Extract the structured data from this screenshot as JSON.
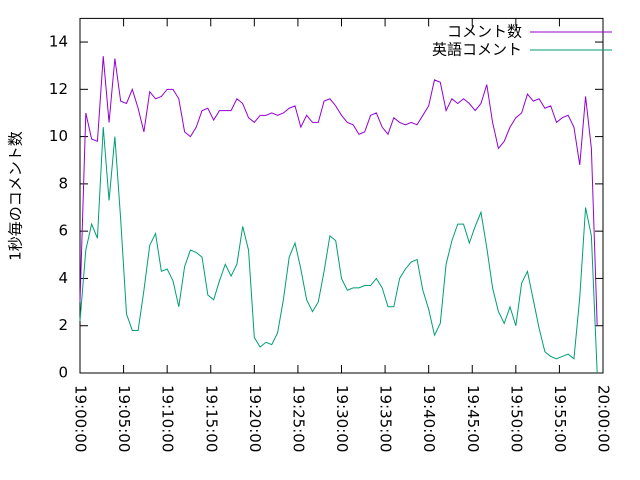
{
  "chart_data": {
    "type": "line",
    "y_label": "1秒毎のコメント数",
    "x": [
      "19:00:00",
      "19:00:40",
      "19:01:20",
      "19:02:00",
      "19:02:40",
      "19:03:20",
      "19:04:00",
      "19:04:40",
      "19:05:20",
      "19:06:00",
      "19:06:40",
      "19:07:20",
      "19:08:00",
      "19:08:40",
      "19:09:20",
      "19:10:00",
      "19:10:40",
      "19:11:20",
      "19:12:00",
      "19:12:40",
      "19:13:20",
      "19:14:00",
      "19:14:40",
      "19:15:20",
      "19:16:00",
      "19:16:40",
      "19:17:20",
      "19:18:00",
      "19:18:40",
      "19:19:20",
      "19:20:00",
      "19:20:40",
      "19:21:20",
      "19:22:00",
      "19:22:40",
      "19:23:20",
      "19:24:00",
      "19:24:40",
      "19:25:20",
      "19:26:00",
      "19:26:40",
      "19:27:20",
      "19:28:00",
      "19:28:40",
      "19:29:20",
      "19:30:00",
      "19:30:40",
      "19:31:20",
      "19:32:00",
      "19:32:40",
      "19:33:20",
      "19:34:00",
      "19:34:40",
      "19:35:20",
      "19:36:00",
      "19:36:40",
      "19:37:20",
      "19:38:00",
      "19:38:40",
      "19:39:20",
      "19:40:00",
      "19:40:40",
      "19:41:20",
      "19:42:00",
      "19:42:40",
      "19:43:20",
      "19:44:00",
      "19:44:40",
      "19:45:20",
      "19:46:00",
      "19:46:40",
      "19:47:20",
      "19:48:00",
      "19:48:40",
      "19:49:20",
      "19:50:00",
      "19:50:40",
      "19:51:20",
      "19:52:00",
      "19:52:40",
      "19:53:20",
      "19:54:00",
      "19:54:40",
      "19:55:20",
      "19:56:00",
      "19:56:40",
      "19:57:20",
      "19:58:00",
      "19:58:40",
      "19:59:20"
    ],
    "series": [
      {
        "name": "コメント数",
        "color": "#9400d3",
        "values": [
          3,
          11,
          9.9,
          9.8,
          13.4,
          10.6,
          13.3,
          11.5,
          11.4,
          12,
          11.2,
          10.2,
          11.9,
          11.6,
          11.7,
          12,
          12,
          11.6,
          10.2,
          10,
          10.4,
          11.1,
          11.2,
          10.7,
          11.1,
          11.1,
          11.1,
          11.6,
          11.4,
          10.8,
          10.6,
          10.9,
          10.9,
          11,
          10.9,
          11,
          11.2,
          11.3,
          10.4,
          10.9,
          10.6,
          10.6,
          11.5,
          11.6,
          11.3,
          10.9,
          10.6,
          10.5,
          10.1,
          10.2,
          10.9,
          11,
          10.4,
          10.1,
          10.8,
          10.6,
          10.5,
          10.6,
          10.5,
          10.9,
          11.3,
          12.4,
          12.3,
          11.1,
          11.6,
          11.4,
          11.6,
          11.4,
          11.1,
          11.4,
          12.2,
          10.6,
          9.5,
          9.8,
          10.4,
          10.8,
          11,
          11.8,
          11.5,
          11.6,
          11.2,
          11.3,
          10.6,
          10.8,
          10.9,
          10.4,
          8.8,
          11.7,
          9.5,
          2
        ]
      },
      {
        "name": "英語コメント",
        "color": "#009e73",
        "values": [
          2.2,
          5.2,
          6.3,
          5.7,
          10.4,
          7.3,
          10,
          6.5,
          2.5,
          1.8,
          1.8,
          3.5,
          5.4,
          5.9,
          4.3,
          4.4,
          3.9,
          2.8,
          4.5,
          5.2,
          5.1,
          4.9,
          3.3,
          3.1,
          3.9,
          4.6,
          4.1,
          4.6,
          6.2,
          5.2,
          1.5,
          1.1,
          1.3,
          1.2,
          1.7,
          3.1,
          4.9,
          5.5,
          4.4,
          3.1,
          2.6,
          3,
          4.3,
          5.8,
          5.6,
          4,
          3.5,
          3.6,
          3.6,
          3.7,
          3.7,
          4,
          3.6,
          2.8,
          2.8,
          4,
          4.4,
          4.7,
          4.8,
          3.5,
          2.7,
          1.6,
          2.1,
          4.6,
          5.6,
          6.3,
          6.3,
          5.5,
          6.2,
          6.8,
          5.3,
          3.6,
          2.6,
          2.1,
          2.8,
          2,
          3.8,
          4.3,
          3.1,
          1.9,
          0.9,
          0.7,
          0.6,
          0.7,
          0.8,
          0.6,
          3.2,
          7,
          5.8,
          0
        ]
      }
    ],
    "xlim": [
      "19:00:00",
      "20:00:00"
    ],
    "xticks": [
      "19:00:00",
      "19:05:00",
      "19:10:00",
      "19:15:00",
      "19:20:00",
      "19:25:00",
      "19:30:00",
      "19:35:00",
      "19:40:00",
      "19:45:00",
      "19:50:00",
      "19:55:00",
      "20:00:00"
    ],
    "ylim": [
      0,
      15
    ],
    "yticks": [
      0,
      2,
      4,
      6,
      8,
      10,
      12,
      14
    ],
    "legend": "top-right"
  }
}
